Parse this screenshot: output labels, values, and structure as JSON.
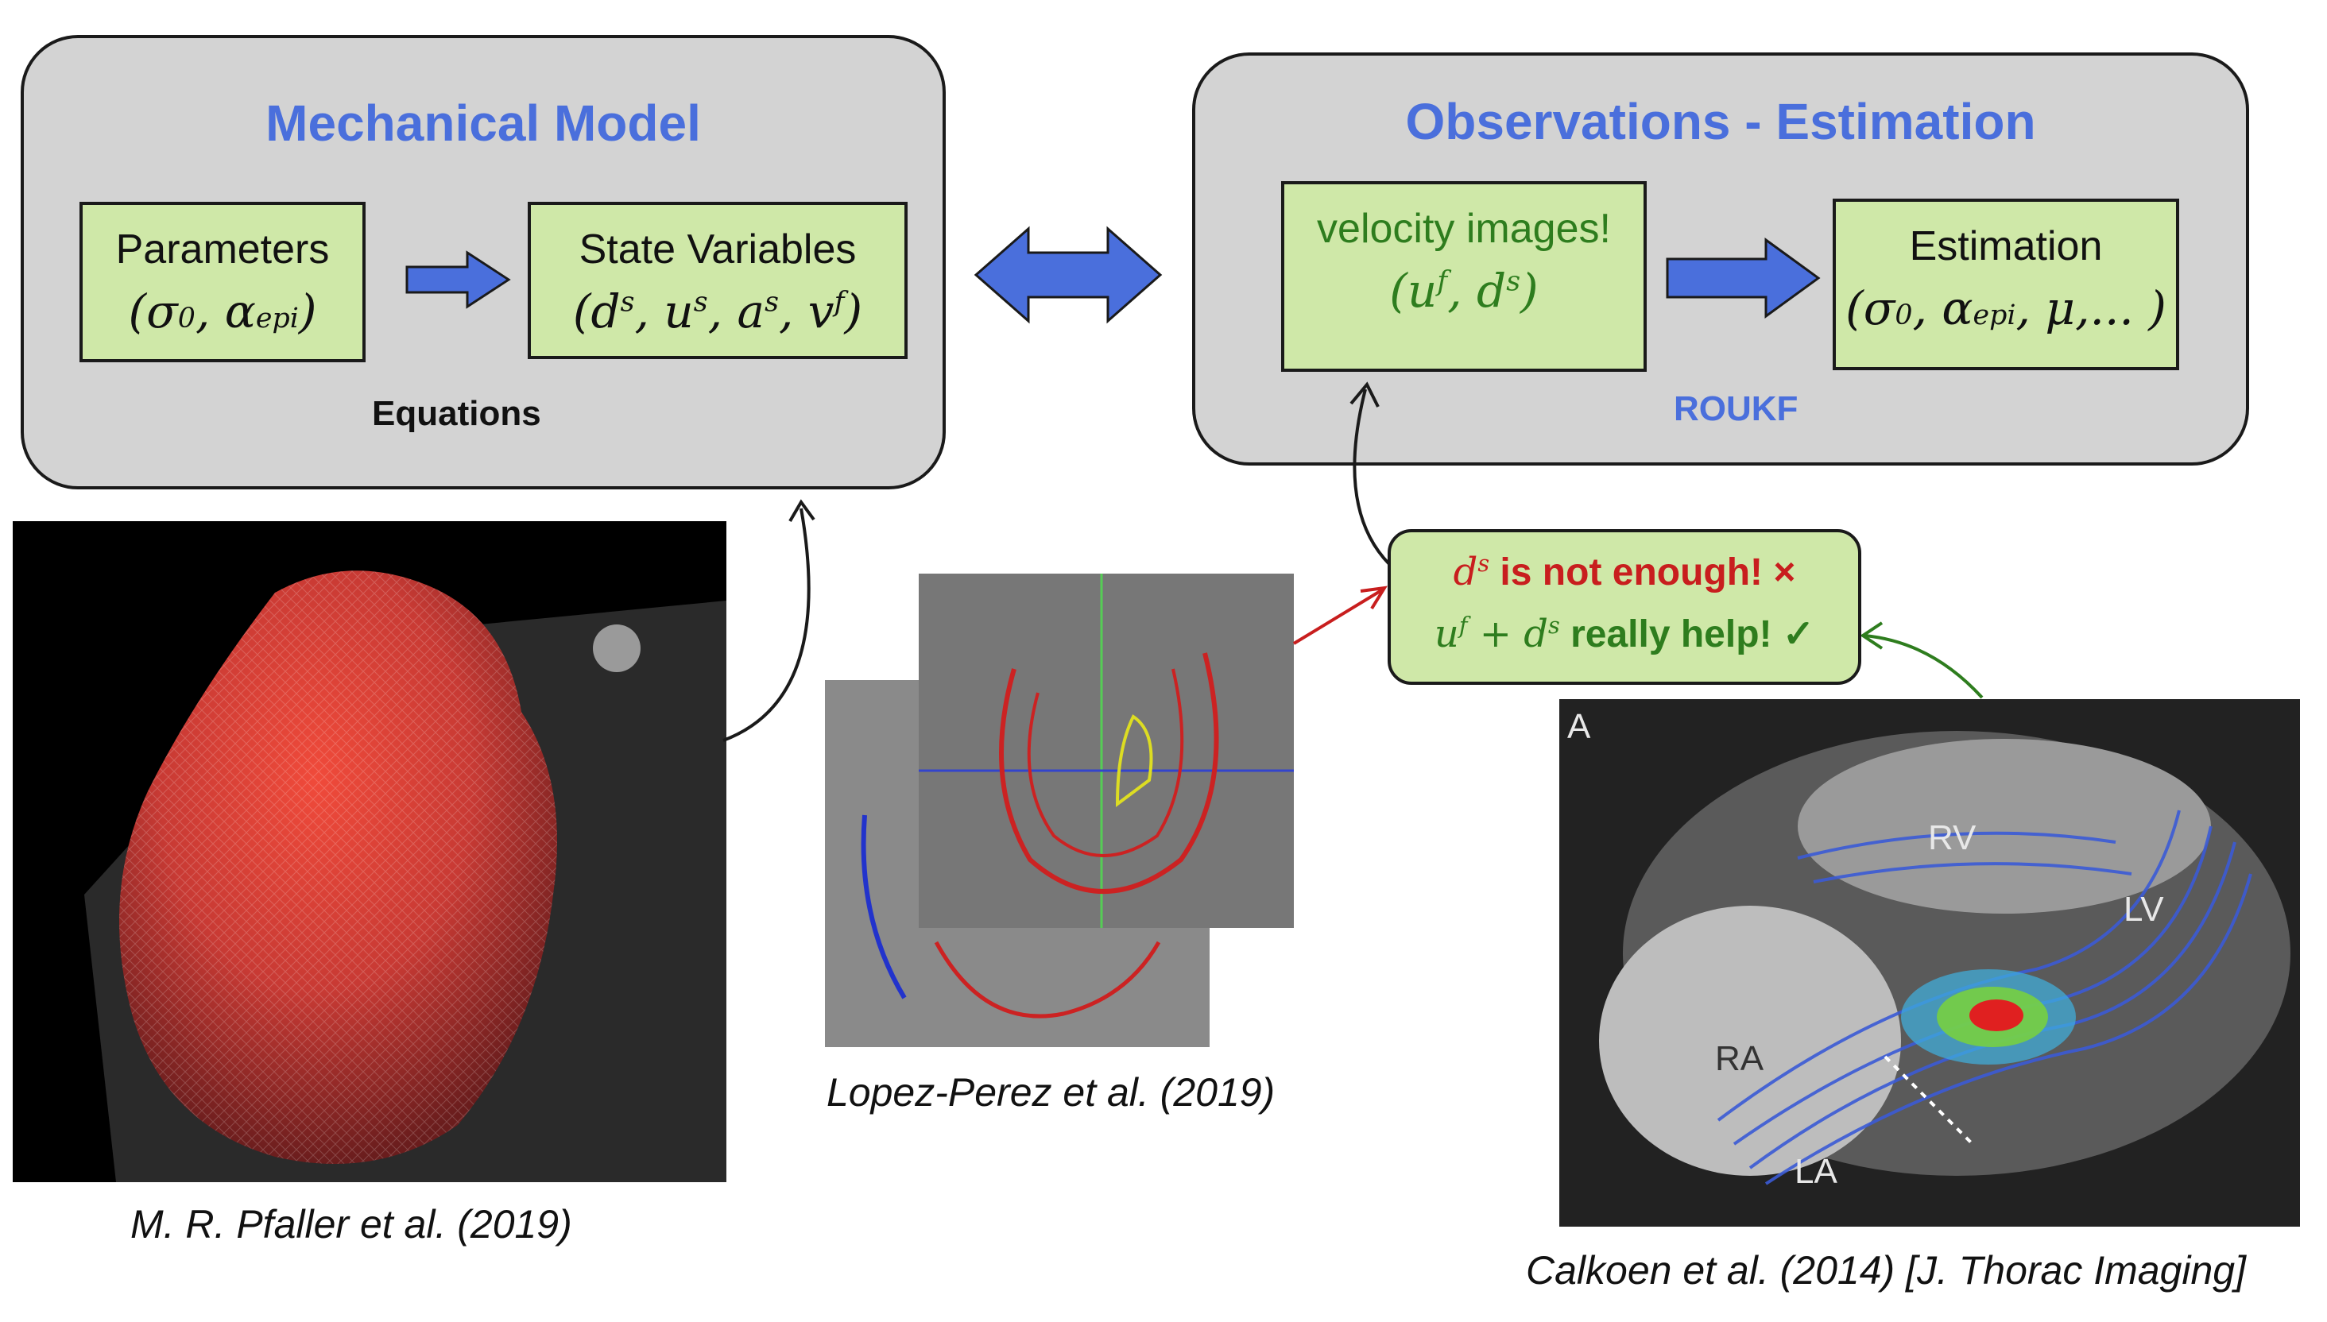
{
  "left_panel": {
    "title": "Mechanical Model",
    "box1_label": "Parameters",
    "box1_math": "(σ0, αepi)",
    "box2_label": "State Variables",
    "box2_math": "(ds, us, as, vf)",
    "footer": "Equations"
  },
  "right_panel": {
    "title": "Observations - Estimation",
    "box1_label": "velocity images!",
    "box1_math": "(uf, ds)",
    "box2_label": "Estimation",
    "box2_math": "(σ0, αepi, μ,... )",
    "footer": "ROUKF"
  },
  "callout": {
    "line1": "ds is not enough! ×",
    "line2": "uf + ds really help! ✓"
  },
  "captions": {
    "heart": "M. R. Pfaller et al. (2019)",
    "mri": "Lopez-Perez et al. (2019)",
    "flow": "Calkoen et al. (2014) [J. Thorac Imaging]"
  },
  "flow_labels": {
    "a": "A",
    "rv": "RV",
    "lv": "LV",
    "ra": "RA",
    "la": "LA"
  },
  "colors": {
    "title_blue": "#4a6fdc",
    "box_green": "#cfe8a8",
    "text_green": "#2e7d1e",
    "text_red": "#c81e1e",
    "arrow_blue": "#4a6fdc"
  }
}
